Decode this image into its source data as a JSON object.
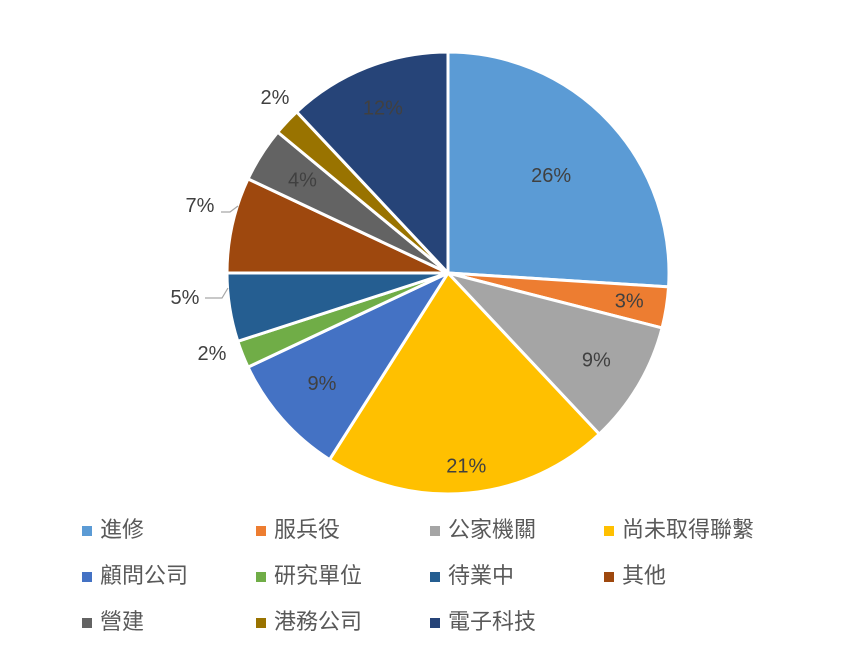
{
  "chart_data": {
    "type": "pie",
    "title": "",
    "legend_position": "bottom",
    "slices": [
      {
        "label": "進修",
        "value": 26,
        "display": "26%",
        "color": "#5B9BD5",
        "label_color": "#404040",
        "outside": false
      },
      {
        "label": "服兵役",
        "value": 3,
        "display": "3%",
        "color": "#ED7D31",
        "label_color": "#404040",
        "outside": false
      },
      {
        "label": "公家機關",
        "value": 9,
        "display": "9%",
        "color": "#A5A5A5",
        "label_color": "#404040",
        "outside": false
      },
      {
        "label": "尚未取得聯繫",
        "value": 21,
        "display": "21%",
        "color": "#FFC000",
        "label_color": "#404040",
        "outside": false
      },
      {
        "label": "顧問公司",
        "value": 9,
        "display": "9%",
        "color": "#4472C4",
        "label_color": "#404040",
        "outside": false
      },
      {
        "label": "研究單位",
        "value": 2,
        "display": "2%",
        "color": "#70AD47",
        "label_color": "#404040",
        "outside": true
      },
      {
        "label": "待業中",
        "value": 5,
        "display": "5%",
        "color": "#255E91",
        "label_color": "#404040",
        "outside": true
      },
      {
        "label": "其他",
        "value": 7,
        "display": "7%",
        "color": "#9E480E",
        "label_color": "#404040",
        "outside": true
      },
      {
        "label": "營建",
        "value": 4,
        "display": "4%",
        "color": "#636363",
        "label_color": "#404040",
        "outside": false
      },
      {
        "label": "港務公司",
        "value": 2,
        "display": "2%",
        "color": "#997300",
        "label_color": "#404040",
        "outside": true
      },
      {
        "label": "電子科技",
        "value": 12,
        "display": "12%",
        "color": "#264478",
        "label_color": "#404040",
        "outside": false
      }
    ]
  }
}
